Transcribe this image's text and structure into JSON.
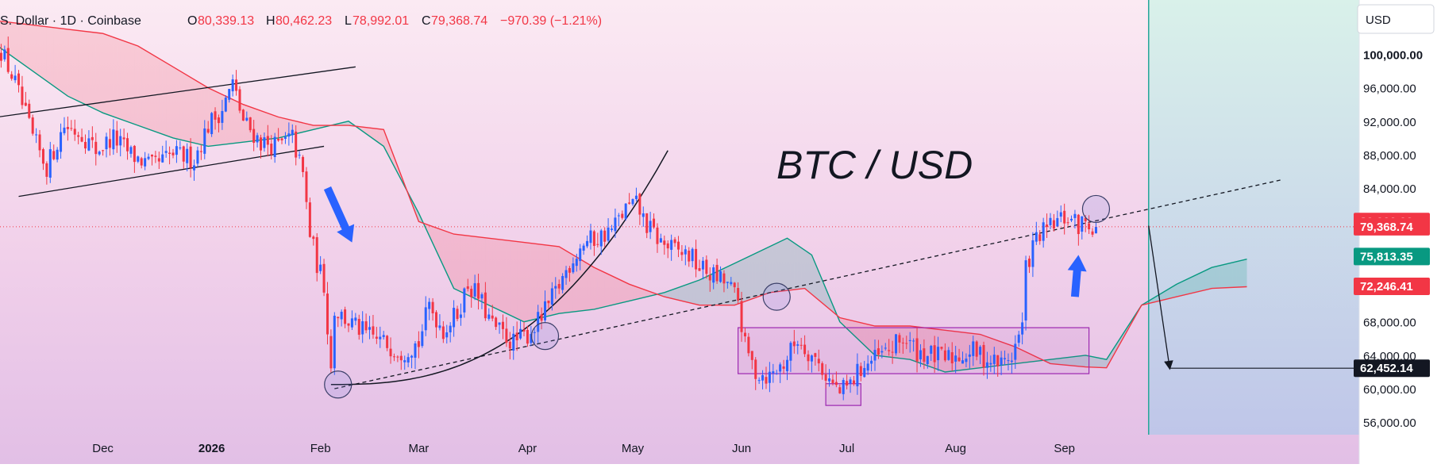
{
  "header": {
    "symbol": "S. Dollar · 1D · Coinbase",
    "o_label": "O",
    "o_value": "80,339.13",
    "h_label": "H",
    "h_value": "80,462.23",
    "l_label": "L",
    "l_value": "78,992.01",
    "c_label": "C",
    "c_value": "79,368.74",
    "change": "−970.39 (−1.21%)"
  },
  "currency_button": "USD",
  "chart_data": {
    "type": "candlestick",
    "title": "BTC / USD",
    "ylim": [
      54500,
      106500
    ],
    "y_ticks": [
      56000,
      60000,
      64000,
      68000,
      72000,
      76000,
      80000,
      84000,
      88000,
      92000,
      96000,
      100000
    ],
    "y_tick_labels": [
      "56,000.00",
      "60,000.00",
      "64,000.00",
      "68,000.00",
      "72,000.00",
      "76,000.00",
      "80,000.00",
      "84,000.00",
      "88,000.00",
      "92,000.00",
      "96,000.00",
      "100,000.00"
    ],
    "x_ticks": [
      {
        "label": "Dec",
        "day": 30
      },
      {
        "label": "2026",
        "day": 61
      },
      {
        "label": "Feb",
        "day": 92
      },
      {
        "label": "Mar",
        "day": 120
      },
      {
        "label": "Apr",
        "day": 151
      },
      {
        "label": "May",
        "day": 181
      },
      {
        "label": "Jun",
        "day": 212
      },
      {
        "label": "Jul",
        "day": 242
      },
      {
        "label": "Aug",
        "day": 273
      },
      {
        "label": "Sep",
        "day": 304
      }
    ],
    "close_anchors": [
      [
        0,
        101500
      ],
      [
        5,
        96500
      ],
      [
        10,
        90000
      ],
      [
        14,
        86500
      ],
      [
        19,
        91500
      ],
      [
        24,
        90500
      ],
      [
        28,
        88500
      ],
      [
        33,
        90000
      ],
      [
        38,
        88000
      ],
      [
        44,
        86500
      ],
      [
        50,
        88000
      ],
      [
        56,
        87500
      ],
      [
        60,
        91500
      ],
      [
        64,
        93500
      ],
      [
        67,
        96500
      ],
      [
        70,
        92000
      ],
      [
        75,
        89500
      ],
      [
        80,
        89000
      ],
      [
        84,
        90000
      ],
      [
        87,
        85500
      ],
      [
        89,
        78500
      ],
      [
        91,
        75000
      ],
      [
        93,
        72500
      ],
      [
        95,
        62500
      ],
      [
        96,
        69500
      ],
      [
        100,
        68000
      ],
      [
        105,
        66500
      ],
      [
        110,
        65500
      ],
      [
        115,
        64500
      ],
      [
        120,
        65500
      ],
      [
        123,
        70000
      ],
      [
        127,
        67000
      ],
      [
        131,
        69000
      ],
      [
        134,
        72500
      ],
      [
        137,
        71000
      ],
      [
        141,
        67500
      ],
      [
        144,
        66500
      ],
      [
        147,
        65500
      ],
      [
        151,
        66500
      ],
      [
        155,
        68500
      ],
      [
        159,
        71500
      ],
      [
        163,
        75000
      ],
      [
        167,
        77500
      ],
      [
        171,
        78000
      ],
      [
        175,
        79000
      ],
      [
        179,
        81500
      ],
      [
        182,
        82000
      ],
      [
        185,
        79500
      ],
      [
        189,
        77500
      ],
      [
        193,
        76500
      ],
      [
        197,
        76000
      ],
      [
        200,
        74500
      ],
      [
        204,
        73500
      ],
      [
        208,
        72500
      ],
      [
        211,
        70500
      ],
      [
        213,
        65000
      ],
      [
        216,
        62000
      ],
      [
        220,
        61500
      ],
      [
        224,
        63000
      ],
      [
        228,
        66000
      ],
      [
        231,
        64500
      ],
      [
        234,
        63000
      ],
      [
        237,
        61000
      ],
      [
        240,
        59500
      ],
      [
        243,
        60500
      ],
      [
        246,
        62500
      ],
      [
        250,
        63500
      ],
      [
        254,
        64500
      ],
      [
        258,
        66000
      ],
      [
        262,
        64500
      ],
      [
        266,
        64000
      ],
      [
        270,
        63500
      ],
      [
        274,
        64000
      ],
      [
        278,
        64500
      ],
      [
        282,
        63500
      ],
      [
        286,
        63000
      ],
      [
        289,
        64000
      ],
      [
        292,
        67500
      ],
      [
        293,
        74500
      ],
      [
        296,
        78000
      ],
      [
        299,
        79000
      ],
      [
        302,
        80000
      ],
      [
        305,
        80500
      ],
      [
        308,
        79500
      ],
      [
        310,
        80000
      ],
      [
        313,
        79368.74
      ]
    ],
    "ichimoku_cloud": {
      "leading_span_a": [
        [
          0,
          101000
        ],
        [
          10,
          98000
        ],
        [
          20,
          95000
        ],
        [
          30,
          93000
        ],
        [
          40,
          91500
        ],
        [
          50,
          90000
        ],
        [
          60,
          89000
        ],
        [
          70,
          89500
        ],
        [
          80,
          90000
        ],
        [
          90,
          91000
        ],
        [
          95,
          91500
        ],
        [
          100,
          92000
        ],
        [
          110,
          89000
        ],
        [
          120,
          81000
        ],
        [
          130,
          72000
        ],
        [
          140,
          70000
        ],
        [
          150,
          68000
        ],
        [
          160,
          69000
        ],
        [
          170,
          69500
        ],
        [
          180,
          70500
        ],
        [
          190,
          71500
        ],
        [
          200,
          73000
        ],
        [
          210,
          75000
        ],
        [
          220,
          77000
        ],
        [
          225,
          78000
        ],
        [
          232,
          76000
        ],
        [
          240,
          68000
        ],
        [
          250,
          64000
        ],
        [
          260,
          63500
        ],
        [
          270,
          62000
        ],
        [
          280,
          62500
        ],
        [
          290,
          63000
        ],
        [
          300,
          63500
        ],
        [
          310,
          64000
        ],
        [
          316,
          63500
        ],
        [
          326,
          70000
        ],
        [
          336,
          72500
        ],
        [
          346,
          74500
        ],
        [
          356,
          75500
        ]
      ],
      "leading_span_b": [
        [
          0,
          104000
        ],
        [
          10,
          103500
        ],
        [
          20,
          103000
        ],
        [
          30,
          102500
        ],
        [
          40,
          101000
        ],
        [
          50,
          98500
        ],
        [
          60,
          96000
        ],
        [
          70,
          94000
        ],
        [
          80,
          92500
        ],
        [
          90,
          91500
        ],
        [
          100,
          91500
        ],
        [
          110,
          91000
        ],
        [
          120,
          80000
        ],
        [
          130,
          78500
        ],
        [
          140,
          78000
        ],
        [
          150,
          77500
        ],
        [
          160,
          77000
        ],
        [
          170,
          74500
        ],
        [
          180,
          72500
        ],
        [
          190,
          71000
        ],
        [
          200,
          70000
        ],
        [
          210,
          70000
        ],
        [
          220,
          71500
        ],
        [
          230,
          72000
        ],
        [
          240,
          68500
        ],
        [
          250,
          67500
        ],
        [
          260,
          67500
        ],
        [
          270,
          67000
        ],
        [
          280,
          66500
        ],
        [
          290,
          65000
        ],
        [
          300,
          63000
        ],
        [
          310,
          62600
        ],
        [
          316,
          62500
        ],
        [
          326,
          70000
        ],
        [
          336,
          71000
        ],
        [
          346,
          72000
        ],
        [
          356,
          72200
        ]
      ]
    },
    "trend_lines": [
      {
        "style": "solid",
        "from": [
          0,
          92500
        ],
        "to": [
          102,
          98500
        ]
      },
      {
        "style": "solid",
        "from": [
          6,
          83000
        ],
        "to": [
          93,
          89000
        ]
      },
      {
        "style": "solid",
        "curve": "parabolic",
        "from": [
          95,
          60500
        ],
        "to": [
          191,
          88500
        ]
      },
      {
        "style": "dashed",
        "from": [
          96,
          60000
        ],
        "to": [
          366,
          85000
        ]
      }
    ],
    "current_price_line": 79368.74,
    "target_line": 62452.14,
    "price_labels": [
      {
        "value": "80,000.00",
        "price": 80000,
        "color": "#f23645"
      },
      {
        "value": "79,368.74",
        "price": 79368.74,
        "color": "#f23645"
      },
      {
        "value": "75,813.35",
        "price": 75813.35,
        "color": "#089981"
      },
      {
        "value": "72,246.41",
        "price": 72246.41,
        "color": "#f23645"
      },
      {
        "value": "62,452.14",
        "price": 62452.14,
        "color": "#131722"
      }
    ],
    "range_boxes": [
      {
        "from_day": 211,
        "to_day": 311,
        "low": 61800,
        "high": 67300
      },
      {
        "from_day": 236,
        "to_day": 246,
        "low": 58000,
        "high": 60600
      }
    ],
    "circles": [
      [
        97,
        60500
      ],
      [
        156,
        66300
      ],
      [
        222,
        71000
      ],
      [
        313,
        81500
      ]
    ],
    "arrows": [
      {
        "from": [
          94,
          84000
        ],
        "to": [
          101,
          77500
        ]
      },
      {
        "from": [
          307,
          71000
        ],
        "to": [
          308,
          76000
        ]
      }
    ],
    "projection": {
      "from": [
        328,
        79500
      ],
      "to": [
        334,
        62452.14
      ]
    },
    "forecast_zone_start_day": 328,
    "colors": {
      "up": "#2962ff",
      "down": "#f23645",
      "span_a": "#089981",
      "span_b": "#f23645",
      "box": "#9c27b0",
      "zone": "#26a69a"
    }
  }
}
